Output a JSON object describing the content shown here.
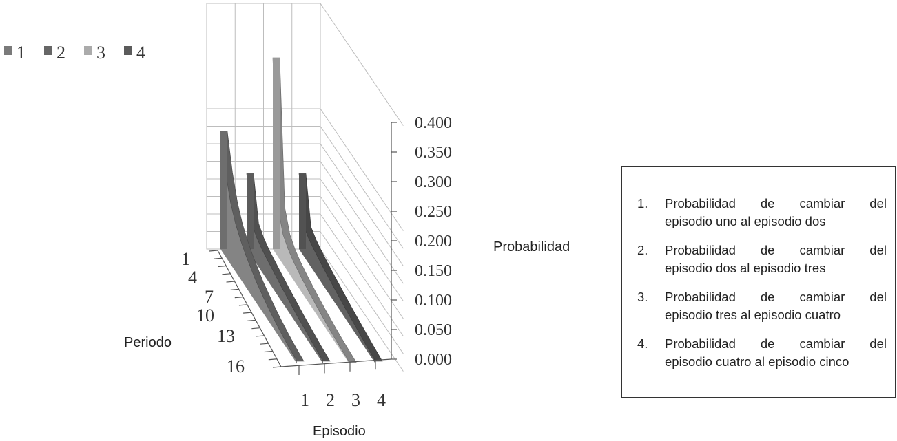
{
  "chart_data": {
    "type": "area",
    "subtype": "3d-area",
    "xlabel": "Episodio",
    "ylabel": "Periodo",
    "zlabel": "Probabilidad",
    "episodes": [
      "1",
      "2",
      "3",
      "4"
    ],
    "periods": [
      "1",
      "2",
      "3",
      "4",
      "5",
      "6",
      "7",
      "8",
      "9",
      "10",
      "11",
      "12",
      "13",
      "14",
      "15",
      "16"
    ],
    "period_tick_labels": [
      "1",
      "4",
      "7",
      "10",
      "13",
      "16"
    ],
    "z_tick_labels": [
      "0.000",
      "0.050",
      "0.100",
      "0.150",
      "0.200",
      "0.250",
      "0.300",
      "0.350",
      "0.400"
    ],
    "zlim": [
      0,
      0.4
    ],
    "series": [
      {
        "name": "1",
        "color": "#7a7a7a",
        "values": [
          0.335,
          0.24,
          0.175,
          0.135,
          0.11,
          0.09,
          0.075,
          0.06,
          0.05,
          0.04,
          0.032,
          0.025,
          0.019,
          0.014,
          0.01,
          0.007
        ]
      },
      {
        "name": "2",
        "color": "#666666",
        "values": [
          0.215,
          0.095,
          0.075,
          0.065,
          0.058,
          0.052,
          0.046,
          0.04,
          0.035,
          0.03,
          0.025,
          0.021,
          0.017,
          0.013,
          0.01,
          0.007
        ]
      },
      {
        "name": "3",
        "color": "#ababab",
        "values": [
          0.545,
          0.14,
          0.085,
          0.065,
          0.053,
          0.045,
          0.038,
          0.032,
          0.027,
          0.022,
          0.018,
          0.014,
          0.011,
          0.008,
          0.006,
          0.004
        ]
      },
      {
        "name": "4",
        "color": "#5b5b5b",
        "values": [
          0.215,
          0.085,
          0.07,
          0.062,
          0.055,
          0.049,
          0.044,
          0.039,
          0.034,
          0.029,
          0.025,
          0.021,
          0.017,
          0.013,
          0.01,
          0.007
        ]
      }
    ],
    "legend": {
      "placement": "top-left",
      "entries": [
        "1",
        "2",
        "3",
        "4"
      ]
    }
  },
  "description_box": {
    "items": [
      {
        "num": "1.",
        "line1_words": [
          "Probabilidad",
          "de",
          "cambiar",
          "del"
        ],
        "line2": "episodio uno al episodio dos"
      },
      {
        "num": "2.",
        "line1_words": [
          "Probabilidad",
          "de",
          "cambiar",
          "del"
        ],
        "line2": "episodio dos al episodio tres"
      },
      {
        "num": "3.",
        "line1_words": [
          "Probabilidad",
          "de",
          "cambiar",
          "del"
        ],
        "line2": "episodio tres al episodio cuatro"
      },
      {
        "num": "4.",
        "line1_words": [
          "Probabilidad",
          "de",
          "cambiar",
          "del"
        ],
        "line2": "episodio cuatro al episodio cinco"
      }
    ]
  }
}
